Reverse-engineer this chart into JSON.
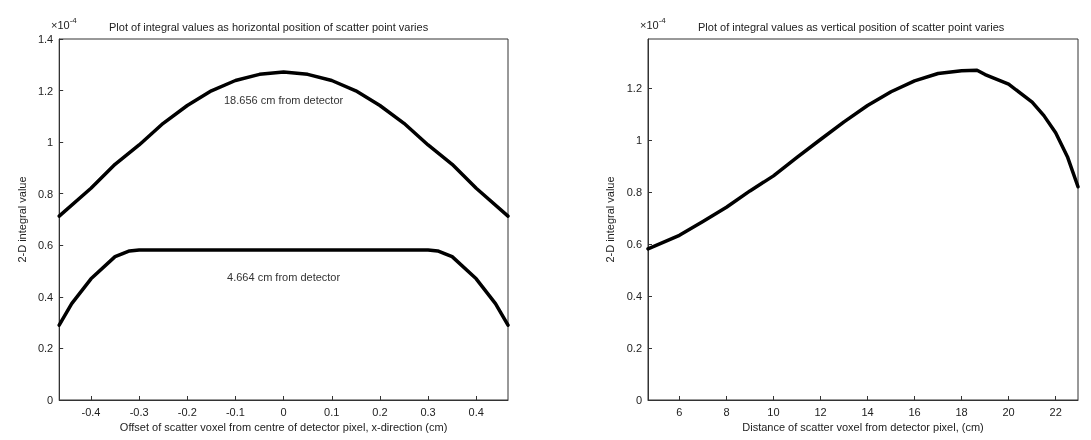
{
  "chart_data": [
    {
      "type": "line",
      "title": "Plot of integral values as horizontal position of scatter point varies",
      "xlabel": "Offset of scatter voxel from centre of detector pixel, x-direction (cm)",
      "ylabel": "2-D integral value",
      "annotations": [
        "×10$^{-4}$"
      ],
      "marker": "none",
      "line_style": "solid",
      "xlim": [
        -0.466,
        0.466
      ],
      "xticks": [
        -0.4,
        -0.3,
        -0.2,
        -0.1,
        0,
        0.1,
        0.2,
        0.3,
        0.4
      ],
      "ylim": [
        0,
        1.4
      ],
      "yticks": [
        0,
        0.2,
        0.4,
        0.6,
        0.8,
        1,
        1.2,
        1.4
      ],
      "series": [
        {
          "name": "18.656 cm from detector",
          "color": "#000000",
          "x": [
            -0.466,
            -0.4,
            -0.35,
            -0.3,
            -0.25,
            -0.2,
            -0.15,
            -0.1,
            -0.05,
            0,
            0.05,
            0.1,
            0.15,
            0.2,
            0.25,
            0.3,
            0.35,
            0.4,
            0.466
          ],
          "values": [
            0.713,
            0.821,
            0.914,
            0.989,
            1.073,
            1.142,
            1.199,
            1.239,
            1.263,
            1.272,
            1.263,
            1.239,
            1.199,
            1.142,
            1.073,
            0.989,
            0.914,
            0.821,
            0.713
          ]
        },
        {
          "name": "4.664 cm from detector",
          "color": "#000000",
          "x": [
            -0.466,
            -0.44,
            -0.4,
            -0.35,
            -0.32,
            -0.3,
            0,
            0.3,
            0.32,
            0.35,
            0.4,
            0.44,
            0.466
          ],
          "values": [
            0.29,
            0.374,
            0.47,
            0.556,
            0.578,
            0.582,
            0.582,
            0.582,
            0.578,
            0.556,
            0.47,
            0.374,
            0.29
          ]
        }
      ]
    },
    {
      "type": "line",
      "title": "Plot of integral values as vertical position of scatter point varies",
      "xlabel": "Distance of scatter voxel from detector pixel, (cm)",
      "ylabel": "2-D integral value",
      "annotations": [
        "×10$^{-4}$"
      ],
      "marker": "none",
      "line_style": "solid",
      "xlim": [
        4.664,
        22.95
      ],
      "xticks": [
        6,
        8,
        10,
        12,
        14,
        16,
        18,
        20,
        22
      ],
      "ylim": [
        0,
        1.39
      ],
      "yticks": [
        0,
        0.2,
        0.4,
        0.6,
        0.8,
        1,
        1.2
      ],
      "series": [
        {
          "color": "#000000",
          "x": [
            4.664,
            6,
            7,
            8,
            9,
            10,
            11,
            12,
            13,
            14,
            15,
            16,
            17,
            18,
            18.656,
            19,
            20,
            21,
            21.5,
            22,
            22.5,
            22.95
          ],
          "values": [
            0.582,
            0.634,
            0.687,
            0.742,
            0.805,
            0.863,
            0.934,
            1.003,
            1.071,
            1.134,
            1.187,
            1.229,
            1.257,
            1.268,
            1.27,
            1.253,
            1.216,
            1.147,
            1.095,
            1.029,
            0.937,
            0.821
          ]
        }
      ]
    }
  ]
}
